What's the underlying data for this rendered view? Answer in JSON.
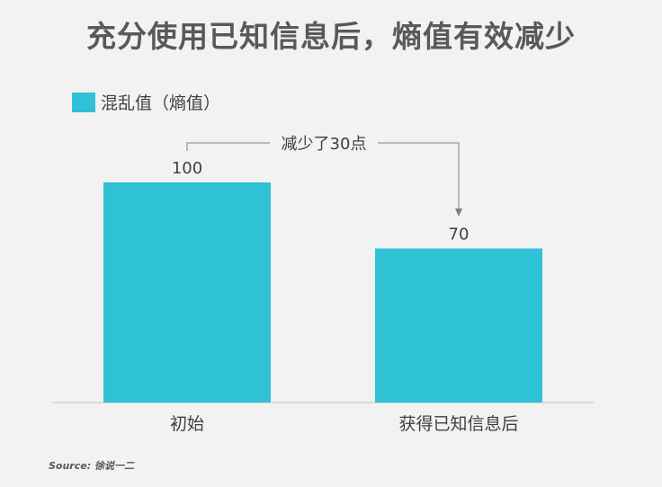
{
  "title": "充分使用已知信息后，熵值有效减少",
  "legend_label": "混乱值（熵值）",
  "annotation": "减少了30点",
  "source": "Source: 徐说一二",
  "colors": {
    "bar": "#2fc1d6",
    "text": "#595959",
    "axis": "#bfbfbf",
    "annotation_line": "#808080"
  },
  "chart_data": {
    "type": "bar",
    "title": "充分使用已知信息后，熵值有效减少",
    "categories": [
      "初始",
      "获得已知信息后"
    ],
    "series": [
      {
        "name": "混乱值（熵值）",
        "values": [
          100,
          70
        ]
      }
    ],
    "data_labels": [
      "100",
      "70"
    ],
    "ylim": [
      0,
      100
    ],
    "grid": false,
    "legend": "top-left",
    "annotations": [
      "减少了30点"
    ]
  }
}
